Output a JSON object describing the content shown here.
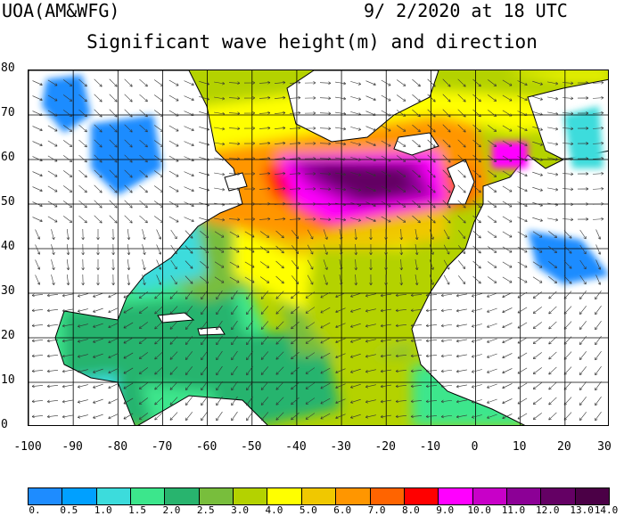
{
  "header": {
    "model": "UOA(AM&WFG)",
    "datetime": "9/ 2/2020 at 18 UTC",
    "title": "Significant wave height(m) and direction"
  },
  "map": {
    "region": "North Atlantic",
    "lon_range": [
      -100,
      30
    ],
    "lat_range": [
      0,
      80
    ],
    "lon_ticks": [
      "-100",
      "-90",
      "-80",
      "-70",
      "-60",
      "-50",
      "-40",
      "-30",
      "-20",
      "-10",
      "0",
      "10",
      "20",
      "30"
    ],
    "lat_ticks": [
      "80",
      "70",
      "60",
      "50",
      "40",
      "30",
      "20",
      "10",
      "0"
    ],
    "land_color": "#ffffff",
    "coastline_color": "#000000",
    "grid": true,
    "wave_arrows": true
  },
  "colorbar": {
    "labels": [
      "0.",
      "0.5",
      "1.0",
      "1.5",
      "2.0",
      "2.5",
      "3.0",
      "4.0",
      "5.0",
      "6.0",
      "7.0",
      "8.0",
      "9.0",
      "10.0",
      "11.0",
      "12.0",
      "13.0",
      "14.0"
    ],
    "colors": [
      "#1e8cff",
      "#00a0ff",
      "#3cdcdc",
      "#3ce68c",
      "#28b46e",
      "#78be3c",
      "#b4d200",
      "#ffff00",
      "#f0c800",
      "#ff9600",
      "#ff6400",
      "#ff0000",
      "#ff00ff",
      "#c800c8",
      "#8c0096",
      "#640064",
      "#4b0046"
    ]
  }
}
